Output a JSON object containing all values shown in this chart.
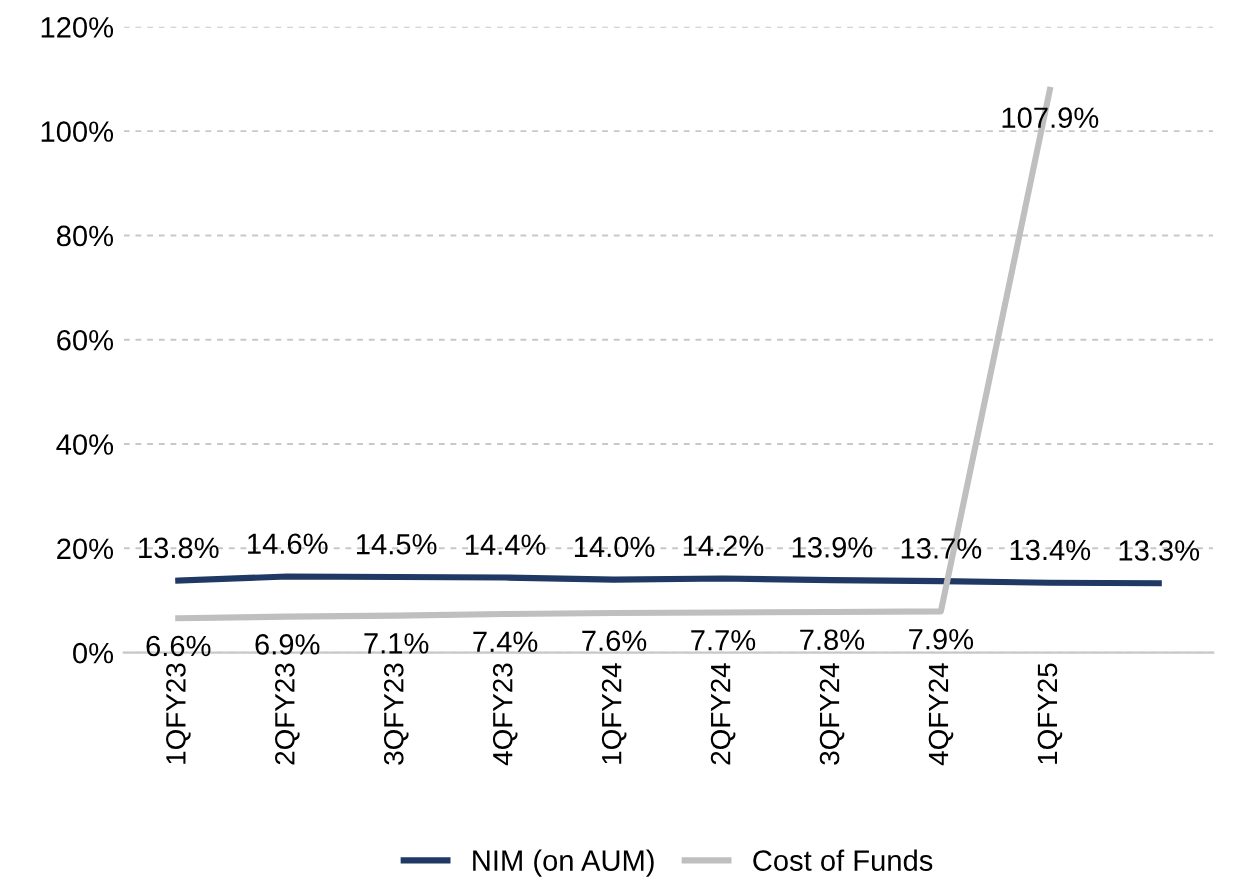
{
  "chart_data": {
    "type": "line",
    "categories": [
      "1QFY23",
      "2QFY23",
      "3QFY23",
      "4QFY23",
      "1QFY24",
      "2QFY24",
      "3QFY24",
      "4QFY24",
      "1QFY25",
      null
    ],
    "series": [
      {
        "name": "NIM (on AUM)",
        "color": "#1f3864",
        "values": [
          13.8,
          14.6,
          14.5,
          14.4,
          14.0,
          14.2,
          13.9,
          13.7,
          13.4,
          13.3
        ],
        "value_labels": [
          "13.8%",
          "14.6%",
          "14.5%",
          "14.4%",
          "14.0%",
          "14.2%",
          "13.9%",
          "13.7%",
          "13.4%",
          "13.3%"
        ]
      },
      {
        "name": "Cost of Funds",
        "color": "#bfbfbf",
        "values": [
          6.6,
          6.9,
          7.1,
          7.4,
          7.6,
          7.7,
          7.8,
          7.9,
          107.9,
          null
        ],
        "value_labels": [
          "6.6%",
          "6.9%",
          "7.1%",
          "7.4%",
          "7.6%",
          "7.7%",
          "7.8%",
          "7.9%",
          "107.9%",
          null
        ]
      }
    ],
    "ylim": [
      0,
      120
    ],
    "yticks": [
      {
        "value": 0,
        "label": "0%"
      },
      {
        "value": 20,
        "label": "20%"
      },
      {
        "value": 40,
        "label": "40%"
      },
      {
        "value": 60,
        "label": "60%"
      },
      {
        "value": 80,
        "label": "80%"
      },
      {
        "value": 100,
        "label": "100%"
      },
      {
        "value": 120,
        "label": "120%"
      }
    ],
    "grid": "y",
    "legend": "bottom",
    "marker": "none",
    "line_style": "solid"
  }
}
